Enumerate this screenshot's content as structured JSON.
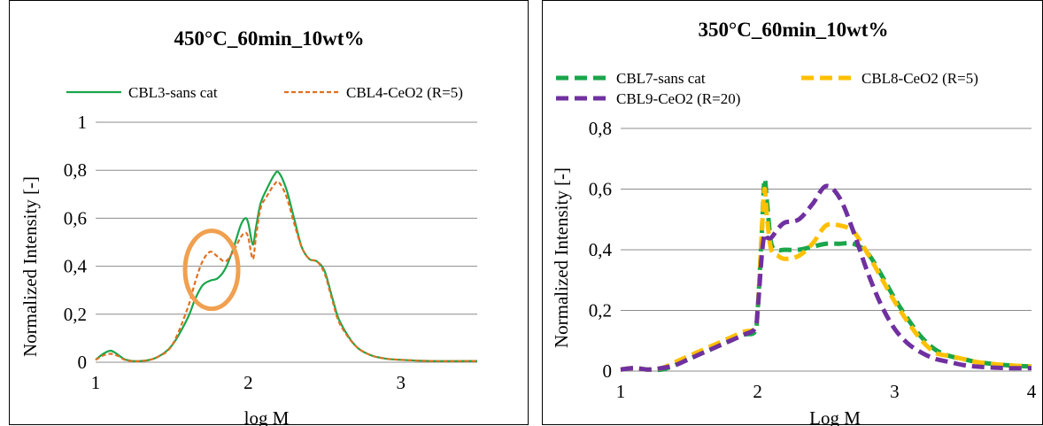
{
  "chart_data": [
    {
      "type": "line",
      "title": "450°C_60min_10wt%",
      "xlabel": "log M",
      "ylabel": "Normalized Intensity [-]",
      "xlim": [
        1,
        3.5
      ],
      "ylim": [
        0,
        1
      ],
      "x_ticks": [
        "1",
        "2",
        "3"
      ],
      "y_ticks": [
        "0",
        "0,2",
        "0,4",
        "0,6",
        "0,8",
        "1"
      ],
      "grid": "horizontal",
      "legend_position": "top",
      "annotation": "orange circle highlighting shoulder near log M 1.75",
      "annotation_color": "#f0a050",
      "series": [
        {
          "name": "CBL3-sans cat",
          "color": "#1aa64b",
          "style": "solid",
          "x": [
            1.0,
            1.05,
            1.1,
            1.15,
            1.2,
            1.3,
            1.4,
            1.5,
            1.6,
            1.65,
            1.7,
            1.75,
            1.8,
            1.85,
            1.9,
            1.95,
            1.98,
            2.0,
            2.03,
            2.05,
            2.08,
            2.12,
            2.17,
            2.2,
            2.25,
            2.3,
            2.35,
            2.4,
            2.45,
            2.5,
            2.55,
            2.6,
            2.7,
            2.8,
            2.9,
            3.0,
            3.2,
            3.5
          ],
          "y": [
            0.01,
            0.035,
            0.048,
            0.03,
            0.01,
            0.005,
            0.02,
            0.07,
            0.18,
            0.26,
            0.32,
            0.34,
            0.35,
            0.39,
            0.47,
            0.57,
            0.6,
            0.58,
            0.49,
            0.56,
            0.66,
            0.72,
            0.78,
            0.79,
            0.72,
            0.6,
            0.48,
            0.43,
            0.42,
            0.38,
            0.27,
            0.17,
            0.07,
            0.03,
            0.015,
            0.01,
            0.005,
            0.005
          ]
        },
        {
          "name": "CBL4-CeO2 (R=5)",
          "color": "#e07020",
          "style": "dashed",
          "x": [
            1.0,
            1.05,
            1.1,
            1.15,
            1.2,
            1.3,
            1.4,
            1.5,
            1.6,
            1.65,
            1.7,
            1.75,
            1.8,
            1.85,
            1.9,
            1.95,
            1.98,
            2.0,
            2.03,
            2.05,
            2.08,
            2.12,
            2.17,
            2.2,
            2.25,
            2.3,
            2.35,
            2.4,
            2.45,
            2.5,
            2.55,
            2.6,
            2.7,
            2.8,
            2.9,
            3.0,
            3.2,
            3.5
          ],
          "y": [
            0.01,
            0.028,
            0.035,
            0.025,
            0.008,
            0.005,
            0.02,
            0.07,
            0.22,
            0.33,
            0.42,
            0.46,
            0.44,
            0.42,
            0.46,
            0.52,
            0.54,
            0.52,
            0.43,
            0.52,
            0.64,
            0.69,
            0.74,
            0.75,
            0.69,
            0.58,
            0.48,
            0.43,
            0.42,
            0.37,
            0.26,
            0.16,
            0.07,
            0.03,
            0.015,
            0.01,
            0.005,
            0.005
          ]
        }
      ]
    },
    {
      "type": "line",
      "title": "350°C_60min_10wt%",
      "xlabel": "Log M",
      "ylabel": "Normalized Intensity [-]",
      "xlim": [
        1,
        4
      ],
      "ylim": [
        0,
        0.8
      ],
      "x_ticks": [
        "1",
        "2",
        "3",
        "4"
      ],
      "y_ticks": [
        "0",
        "0,2",
        "0,4",
        "0,6",
        "0,8"
      ],
      "grid": "horizontal",
      "legend_position": "top",
      "series": [
        {
          "name": "CBL7-sans cat",
          "color": "#1aa64b",
          "style": "dashed",
          "x": [
            1.0,
            1.1,
            1.2,
            1.3,
            1.4,
            1.5,
            1.6,
            1.7,
            1.8,
            1.9,
            1.98,
            2.0,
            2.03,
            2.05,
            2.07,
            2.1,
            2.15,
            2.2,
            2.3,
            2.4,
            2.5,
            2.6,
            2.7,
            2.8,
            2.9,
            3.0,
            3.1,
            3.2,
            3.3,
            3.4,
            3.5,
            3.6,
            3.8,
            4.0
          ],
          "y": [
            0.005,
            0.01,
            0.005,
            0.005,
            0.02,
            0.04,
            0.06,
            0.08,
            0.1,
            0.12,
            0.13,
            0.2,
            0.45,
            0.63,
            0.55,
            0.42,
            0.4,
            0.4,
            0.4,
            0.41,
            0.42,
            0.42,
            0.42,
            0.39,
            0.32,
            0.24,
            0.17,
            0.11,
            0.07,
            0.05,
            0.04,
            0.03,
            0.02,
            0.015
          ]
        },
        {
          "name": "CBL8-CeO2 (R=5)",
          "color": "#ffc000",
          "style": "dashed",
          "x": [
            1.0,
            1.1,
            1.2,
            1.3,
            1.4,
            1.5,
            1.6,
            1.7,
            1.8,
            1.9,
            1.98,
            2.0,
            2.03,
            2.05,
            2.07,
            2.1,
            2.15,
            2.2,
            2.3,
            2.4,
            2.5,
            2.6,
            2.7,
            2.8,
            2.9,
            3.0,
            3.1,
            3.2,
            3.3,
            3.4,
            3.5,
            3.6,
            3.8,
            4.0
          ],
          "y": [
            0.005,
            0.01,
            0.005,
            0.01,
            0.03,
            0.05,
            0.07,
            0.09,
            0.11,
            0.13,
            0.14,
            0.2,
            0.45,
            0.6,
            0.5,
            0.4,
            0.38,
            0.37,
            0.38,
            0.42,
            0.48,
            0.48,
            0.46,
            0.39,
            0.31,
            0.23,
            0.16,
            0.1,
            0.06,
            0.05,
            0.04,
            0.03,
            0.02,
            0.015
          ]
        },
        {
          "name": "CBL9-CeO2 (R=20)",
          "color": "#7030a0",
          "style": "dashed",
          "x": [
            1.0,
            1.1,
            1.2,
            1.3,
            1.4,
            1.5,
            1.6,
            1.7,
            1.8,
            1.9,
            1.98,
            2.0,
            2.03,
            2.05,
            2.07,
            2.1,
            2.15,
            2.2,
            2.3,
            2.4,
            2.5,
            2.6,
            2.7,
            2.8,
            2.9,
            3.0,
            3.1,
            3.2,
            3.3,
            3.4,
            3.5,
            3.6,
            3.8,
            4.0
          ],
          "y": [
            0.005,
            0.01,
            0.005,
            0.01,
            0.02,
            0.04,
            0.06,
            0.08,
            0.1,
            0.12,
            0.14,
            0.2,
            0.38,
            0.45,
            0.44,
            0.44,
            0.47,
            0.49,
            0.5,
            0.55,
            0.61,
            0.57,
            0.46,
            0.33,
            0.22,
            0.14,
            0.09,
            0.06,
            0.04,
            0.03,
            0.02,
            0.015,
            0.01,
            0.01
          ]
        }
      ]
    }
  ]
}
